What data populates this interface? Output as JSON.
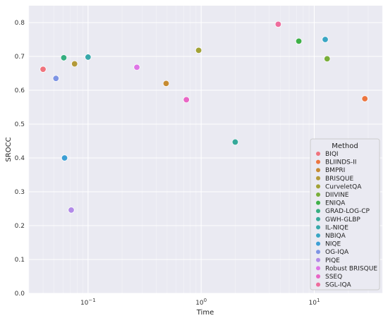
{
  "chart_data": {
    "type": "scatter",
    "xlabel": "Time",
    "ylabel": "SROCC",
    "xscale": "log",
    "xlim": [
      0.03,
      40
    ],
    "ylim": [
      0.0,
      0.85
    ],
    "grid": true,
    "x_ticks": [
      {
        "value": 0.1,
        "base": "10",
        "exp": "−1"
      },
      {
        "value": 1,
        "base": "10",
        "exp": "0"
      },
      {
        "value": 10,
        "base": "10",
        "exp": "1"
      }
    ],
    "y_ticks": [
      "0.0",
      "0.1",
      "0.2",
      "0.3",
      "0.4",
      "0.5",
      "0.6",
      "0.7",
      "0.8"
    ],
    "legend": {
      "title": "Method",
      "position": "lower-right"
    },
    "series": [
      {
        "name": "BIQI",
        "color": "#f0737d",
        "points": [
          {
            "x": 0.04,
            "y": 0.662
          }
        ]
      },
      {
        "name": "BLIINDS-II",
        "color": "#ec7640",
        "points": [
          {
            "x": 28,
            "y": 0.575
          }
        ]
      },
      {
        "name": "BMPRI",
        "color": "#c68b33",
        "points": [
          {
            "x": 0.49,
            "y": 0.62
          }
        ]
      },
      {
        "name": "BRISQUE",
        "color": "#b39a3a",
        "points": [
          {
            "x": 0.076,
            "y": 0.678
          }
        ]
      },
      {
        "name": "CurveletQA",
        "color": "#a2a235",
        "points": [
          {
            "x": 0.95,
            "y": 0.718
          }
        ]
      },
      {
        "name": "DIIVINE",
        "color": "#79ae3a",
        "points": [
          {
            "x": 13,
            "y": 0.693
          }
        ]
      },
      {
        "name": "ENIQA",
        "color": "#3fb048",
        "points": [
          {
            "x": 7.3,
            "y": 0.745
          }
        ]
      },
      {
        "name": "GRAD-LOG-CP",
        "color": "#35ae80",
        "points": [
          {
            "x": 0.061,
            "y": 0.696
          }
        ]
      },
      {
        "name": "GWH-GLBP",
        "color": "#36a99a",
        "points": [
          {
            "x": 2.0,
            "y": 0.447
          }
        ]
      },
      {
        "name": "IL-NIQE",
        "color": "#38a8aa",
        "points": [
          {
            "x": 0.1,
            "y": 0.698
          }
        ]
      },
      {
        "name": "NBIQA",
        "color": "#3aa6c4",
        "points": [
          {
            "x": 12.5,
            "y": 0.75
          }
        ]
      },
      {
        "name": "NIQE",
        "color": "#3d9fd5",
        "points": [
          {
            "x": 0.062,
            "y": 0.4
          }
        ]
      },
      {
        "name": "OG-IQA",
        "color": "#7d94e4",
        "points": [
          {
            "x": 0.052,
            "y": 0.635
          }
        ]
      },
      {
        "name": "PIQE",
        "color": "#b28ae8",
        "points": [
          {
            "x": 0.071,
            "y": 0.246
          }
        ]
      },
      {
        "name": "Robust BRISQUE",
        "color": "#de75e6",
        "points": [
          {
            "x": 0.27,
            "y": 0.668
          }
        ]
      },
      {
        "name": "SSEQ",
        "color": "#e966c5",
        "points": [
          {
            "x": 0.74,
            "y": 0.572
          }
        ]
      },
      {
        "name": "SGL-IQA",
        "color": "#ee6d9d",
        "points": [
          {
            "x": 4.8,
            "y": 0.795
          }
        ]
      }
    ]
  }
}
